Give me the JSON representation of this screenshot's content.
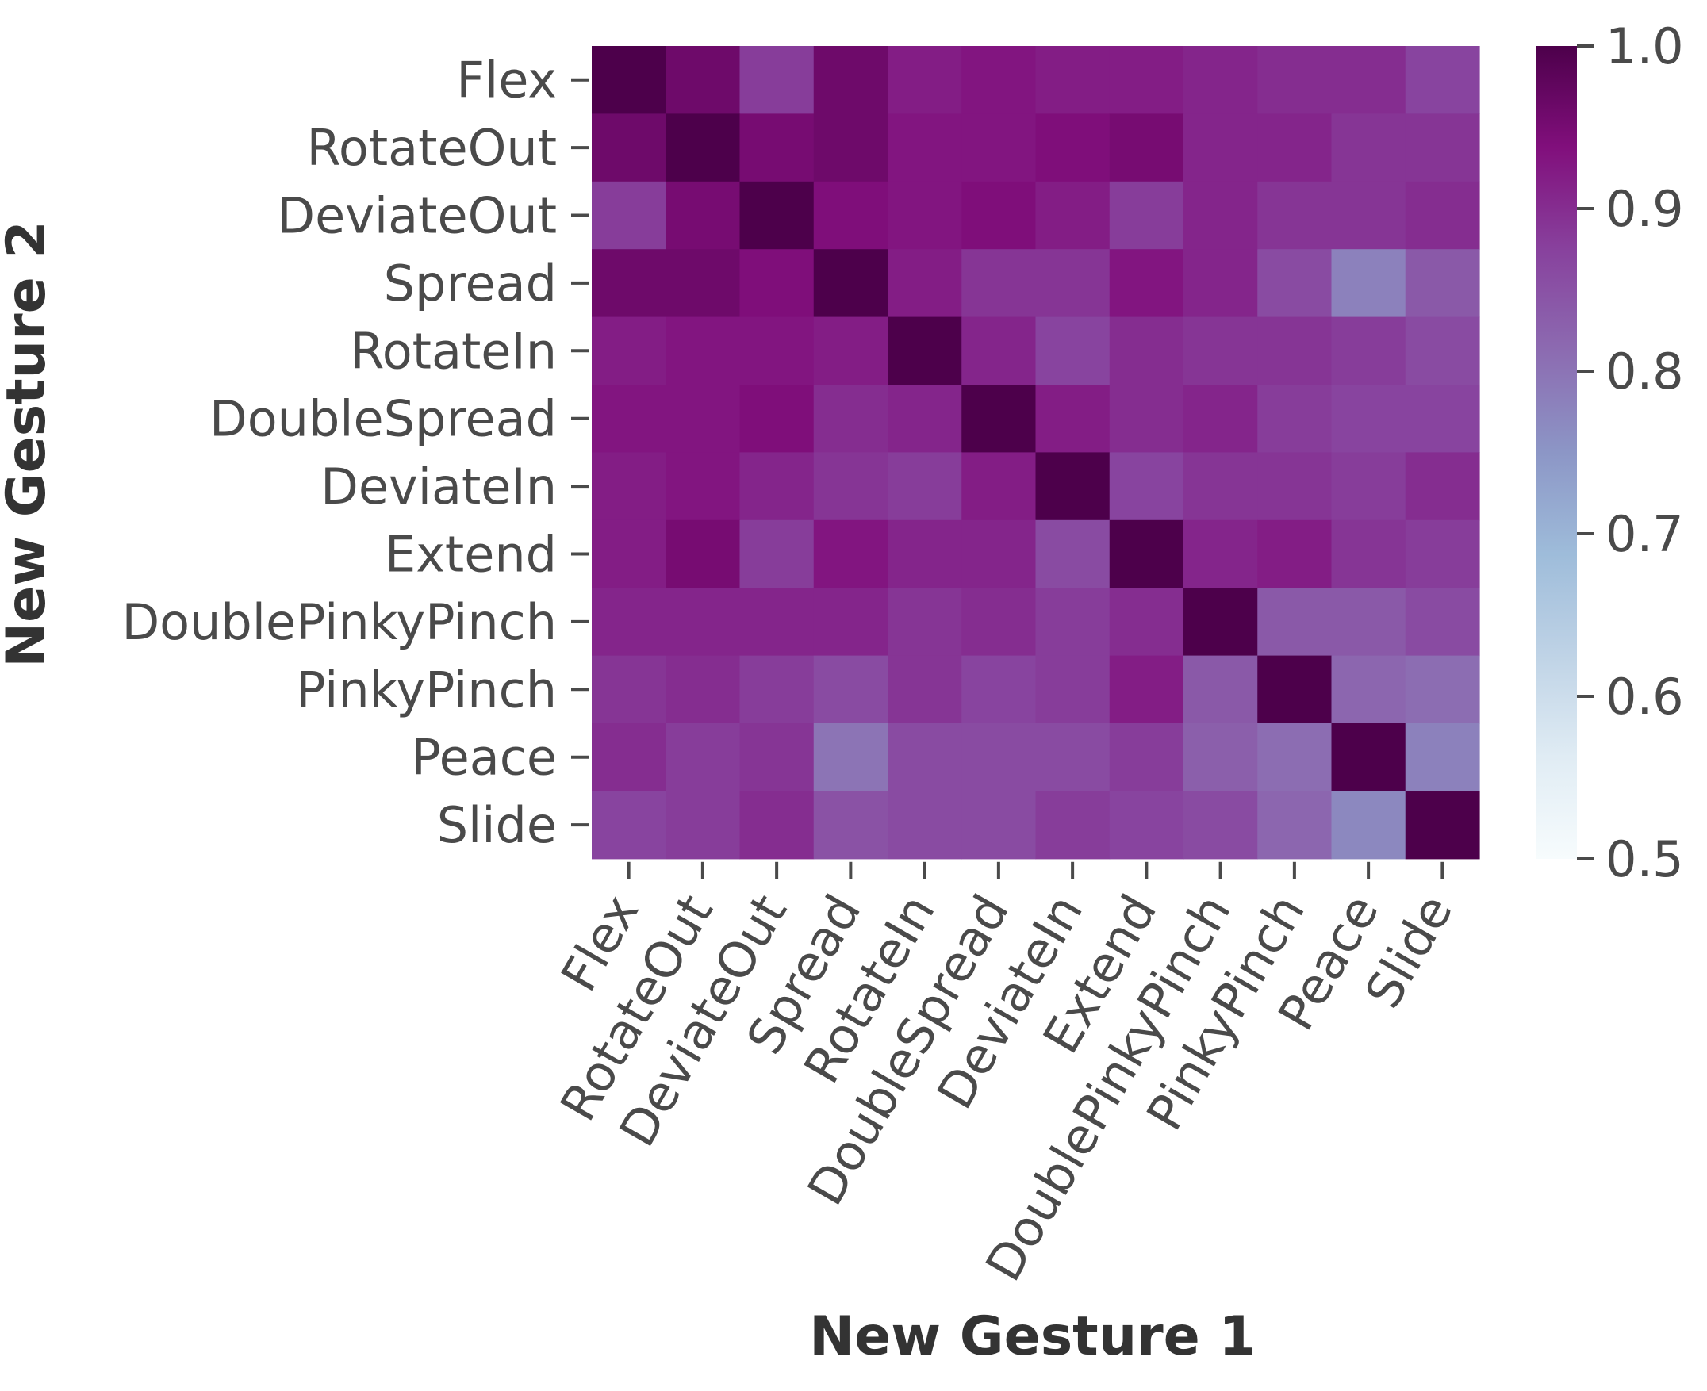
{
  "chart_data": {
    "type": "heatmap",
    "xlabel": "New Gesture 1",
    "ylabel": "New Gesture 2",
    "x_categories": [
      "Flex",
      "RotateOut",
      "DeviateOut",
      "Spread",
      "RotateIn",
      "DoubleSpread",
      "DeviateIn",
      "Extend",
      "DoublePinkyPinch",
      "PinkyPinch",
      "Peace",
      "Slide"
    ],
    "y_categories": [
      "Flex",
      "RotateOut",
      "DeviateOut",
      "Spread",
      "RotateIn",
      "DoubleSpread",
      "DeviateIn",
      "Extend",
      "DoublePinkyPinch",
      "PinkyPinch",
      "Peace",
      "Slide"
    ],
    "values": [
      [
        1.0,
        0.96,
        0.88,
        0.96,
        0.92,
        0.93,
        0.92,
        0.92,
        0.91,
        0.9,
        0.9,
        0.87
      ],
      [
        0.96,
        1.0,
        0.95,
        0.96,
        0.93,
        0.93,
        0.94,
        0.95,
        0.91,
        0.91,
        0.89,
        0.89
      ],
      [
        0.88,
        0.95,
        1.0,
        0.94,
        0.93,
        0.94,
        0.92,
        0.88,
        0.91,
        0.89,
        0.89,
        0.9
      ],
      [
        0.96,
        0.96,
        0.94,
        1.0,
        0.92,
        0.89,
        0.89,
        0.93,
        0.91,
        0.86,
        0.78,
        0.84
      ],
      [
        0.92,
        0.93,
        0.93,
        0.92,
        1.0,
        0.91,
        0.87,
        0.9,
        0.89,
        0.89,
        0.88,
        0.86
      ],
      [
        0.93,
        0.93,
        0.94,
        0.9,
        0.91,
        1.0,
        0.92,
        0.9,
        0.91,
        0.88,
        0.87,
        0.87
      ],
      [
        0.92,
        0.93,
        0.91,
        0.89,
        0.88,
        0.92,
        1.0,
        0.87,
        0.89,
        0.89,
        0.88,
        0.9
      ],
      [
        0.92,
        0.95,
        0.88,
        0.93,
        0.91,
        0.91,
        0.86,
        1.0,
        0.91,
        0.92,
        0.89,
        0.88
      ],
      [
        0.91,
        0.91,
        0.91,
        0.91,
        0.89,
        0.9,
        0.88,
        0.9,
        1.0,
        0.84,
        0.84,
        0.86
      ],
      [
        0.89,
        0.9,
        0.88,
        0.86,
        0.89,
        0.87,
        0.88,
        0.92,
        0.84,
        1.0,
        0.82,
        0.81
      ],
      [
        0.9,
        0.88,
        0.89,
        0.8,
        0.86,
        0.86,
        0.86,
        0.88,
        0.83,
        0.81,
        1.0,
        0.78
      ],
      [
        0.87,
        0.88,
        0.9,
        0.85,
        0.86,
        0.86,
        0.88,
        0.87,
        0.86,
        0.82,
        0.77,
        1.0
      ]
    ],
    "colorbar": {
      "min": 0.5,
      "max": 1.0,
      "ticks": [
        "0.5",
        "0.6",
        "0.7",
        "0.8",
        "0.9",
        "1.0"
      ],
      "colormap": "BuPu"
    }
  }
}
